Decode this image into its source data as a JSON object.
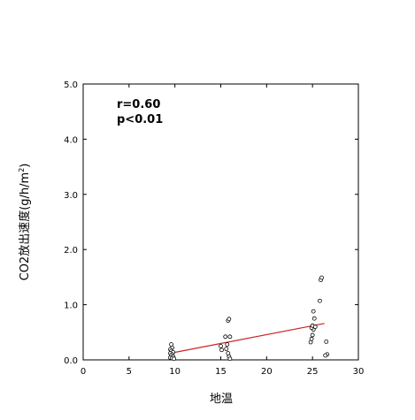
{
  "chart_data": {
    "type": "scatter",
    "title": "",
    "xlabel": "地温",
    "ylabel_main": "CO2放出速度",
    "ylabel_unit_prefix": "(g/h/m",
    "ylabel_unit_sup": "2",
    "ylabel_unit_suffix": ")",
    "xlim": [
      0,
      30
    ],
    "ylim": [
      0,
      5
    ],
    "x_ticks": [
      0,
      5,
      10,
      15,
      20,
      25,
      30
    ],
    "x_tick_labels": [
      "0",
      "5",
      "10",
      "15",
      "20",
      "25",
      "30"
    ],
    "y_ticks": [
      0,
      1,
      2,
      3,
      4,
      5
    ],
    "y_tick_labels": [
      "0.0",
      "1.0",
      "2.0",
      "3.0",
      "4.0",
      "5.0"
    ],
    "grid": false,
    "annotations": [
      "r=0.60",
      "p<0.01"
    ],
    "trendline": {
      "x": [
        9.5,
        26.3
      ],
      "y": [
        0.12,
        0.66
      ],
      "color": "#cc2222"
    },
    "series": [
      {
        "marker": "open-circle",
        "points": [
          [
            9.6,
            0.28
          ],
          [
            9.7,
            0.22
          ],
          [
            9.5,
            0.19
          ],
          [
            9.6,
            0.16
          ],
          [
            9.8,
            0.14
          ],
          [
            9.5,
            0.12
          ],
          [
            9.7,
            0.1
          ],
          [
            9.6,
            0.08
          ],
          [
            9.8,
            0.06
          ],
          [
            9.5,
            0.04
          ],
          [
            9.7,
            0.03
          ],
          [
            9.9,
            0.02
          ],
          [
            15.0,
            0.25
          ],
          [
            15.1,
            0.18
          ],
          [
            15.5,
            0.42
          ],
          [
            15.7,
            0.28
          ],
          [
            15.6,
            0.2
          ],
          [
            15.8,
            0.12
          ],
          [
            15.9,
            0.06
          ],
          [
            16.0,
            0.02
          ],
          [
            15.8,
            0.71
          ],
          [
            15.9,
            0.74
          ],
          [
            16.0,
            0.42
          ],
          [
            24.8,
            0.32
          ],
          [
            24.9,
            0.38
          ],
          [
            25.0,
            0.45
          ],
          [
            25.1,
            0.55
          ],
          [
            24.9,
            0.58
          ],
          [
            25.0,
            0.62
          ],
          [
            25.2,
            0.75
          ],
          [
            25.1,
            0.88
          ],
          [
            25.8,
            1.07
          ],
          [
            25.9,
            1.45
          ],
          [
            26.0,
            1.49
          ],
          [
            25.3,
            0.6
          ],
          [
            26.5,
            0.33
          ],
          [
            26.6,
            0.1
          ],
          [
            26.4,
            0.08
          ]
        ]
      }
    ]
  }
}
